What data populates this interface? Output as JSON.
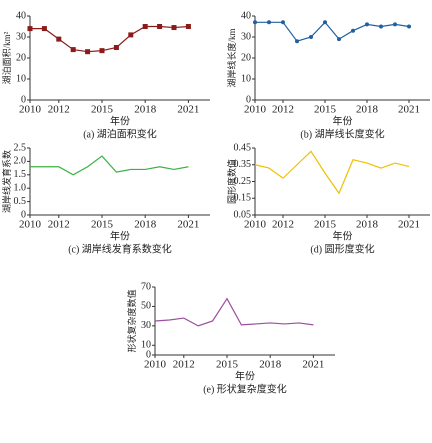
{
  "chart_data": [
    {
      "type": "line",
      "title": "(a) 湖泊面积变化",
      "xlabel": "年份",
      "ylabel": "湖泊面积/km²",
      "x": [
        2010,
        2011,
        2012,
        2013,
        2014,
        2015,
        2016,
        2017,
        2018,
        2019,
        2020,
        2021
      ],
      "xlim": [
        2010,
        2022.5
      ],
      "xticks": [
        2010,
        2012,
        2015,
        2018,
        2021
      ],
      "ylim": [
        0,
        40
      ],
      "yticks": [
        0,
        10,
        20,
        30,
        40
      ],
      "series": [
        {
          "color": "#8b1a1a",
          "marker": "square",
          "values": [
            34,
            34,
            29,
            24,
            23,
            23.5,
            25,
            31,
            35,
            35,
            34.5,
            35
          ]
        }
      ]
    },
    {
      "type": "line",
      "title": "(b) 湖岸线长度变化",
      "xlabel": "年份",
      "ylabel": "湖岸线长度/km",
      "x": [
        2010,
        2011,
        2012,
        2013,
        2014,
        2015,
        2016,
        2017,
        2018,
        2019,
        2020,
        2021
      ],
      "xlim": [
        2010,
        2022.5
      ],
      "xticks": [
        2010,
        2012,
        2015,
        2018,
        2021
      ],
      "ylim": [
        0,
        40
      ],
      "yticks": [
        0,
        10,
        20,
        30,
        40
      ],
      "series": [
        {
          "color": "#2060a0",
          "marker": "circle",
          "values": [
            37,
            37,
            37,
            28,
            30,
            37,
            29,
            33,
            36,
            35,
            36,
            35
          ]
        }
      ]
    },
    {
      "type": "line",
      "title": "(c) 湖岸线发育系数变化",
      "xlabel": "年份",
      "ylabel": "湖岸线发育系数",
      "x": [
        2010,
        2011,
        2012,
        2013,
        2014,
        2015,
        2016,
        2017,
        2018,
        2019,
        2020,
        2021
      ],
      "xlim": [
        2010,
        2022.5
      ],
      "xticks": [
        2010,
        2012,
        2015,
        2018,
        2021
      ],
      "ylim": [
        0,
        2.5
      ],
      "yticks": [
        0,
        0.5,
        {
          "value": 1,
          "label": "1.0"
        },
        1.5,
        {
          "value": 2,
          "label": "2.0"
        },
        2.5
      ],
      "series": [
        {
          "color": "#3cb043",
          "marker": "none",
          "values": [
            1.8,
            1.8,
            1.8,
            1.5,
            1.8,
            2.2,
            1.6,
            1.7,
            1.7,
            1.8,
            1.7,
            1.8
          ]
        }
      ]
    },
    {
      "type": "line",
      "title": "(d) 圆形度变化",
      "xlabel": "年份",
      "ylabel": "圆形度数值",
      "x": [
        2010,
        2011,
        2012,
        2013,
        2014,
        2015,
        2016,
        2017,
        2018,
        2019,
        2020,
        2021
      ],
      "xlim": [
        2010,
        2022.5
      ],
      "xticks": [
        2010,
        2012,
        2015,
        2018,
        2021
      ],
      "ylim": [
        0.05,
        0.45
      ],
      "yticks": [
        0.05,
        0.15,
        0.25,
        0.35,
        0.45
      ],
      "series": [
        {
          "color": "#f0c000",
          "marker": "none",
          "values": [
            0.35,
            0.33,
            0.27,
            0.35,
            0.43,
            0.3,
            0.18,
            0.38,
            0.36,
            0.33,
            0.36,
            0.34
          ]
        }
      ]
    },
    {
      "type": "line",
      "title": "(e) 形状复杂度变化",
      "xlabel": "年份",
      "ylabel": "形状复杂度数值",
      "x": [
        2010,
        2011,
        2012,
        2013,
        2014,
        2015,
        2016,
        2017,
        2018,
        2019,
        2020,
        2021
      ],
      "xlim": [
        2010,
        2022.5
      ],
      "xticks": [
        2010,
        2012,
        2015,
        2018,
        2021
      ],
      "ylim": [
        0,
        70
      ],
      "yticks": [
        0,
        10,
        30,
        50,
        70
      ],
      "series": [
        {
          "color": "#9b4fa0",
          "marker": "none",
          "values": [
            35,
            36,
            38,
            30,
            35,
            58,
            31,
            32,
            33,
            32,
            33,
            31
          ]
        }
      ]
    }
  ]
}
